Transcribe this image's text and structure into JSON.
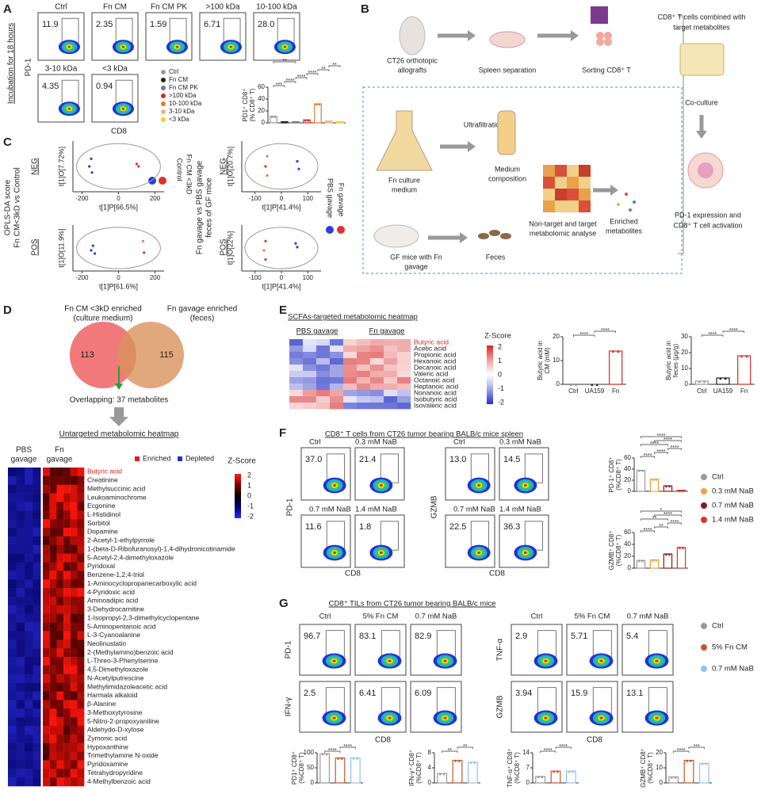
{
  "panel_labels": [
    "A",
    "B",
    "C",
    "D",
    "E",
    "F",
    "G"
  ],
  "A": {
    "side_label": "Incubation for 18 hours",
    "y_axis": "PD-1",
    "x_axis": "CD8",
    "flow": {
      "titles": [
        "Ctrl",
        "Fn CM",
        "Fn CM PK",
        ">100 kDa",
        "10-100 kDa",
        "3-10 kDa",
        "<3 kDa"
      ],
      "values": [
        "11.9",
        "2.35",
        "1.59",
        "6.71",
        "28.0",
        "4.35",
        "0.94"
      ]
    },
    "legend": [
      "Ctrl",
      "Fn CM",
      "Fn CM PK",
      ">100 kDa",
      "10-100 kDa",
      "3-10 kDa",
      "<3 kDa"
    ],
    "colors": [
      "#9a9a9a",
      "#222222",
      "#777777",
      "#d62728",
      "#e07b39",
      "#f3b56b",
      "#f2d027"
    ],
    "bar": {
      "ylabel": [
        "PD1⁺ CD8⁺",
        "(% CD8⁺ T)"
      ],
      "ylim": [
        0,
        60
      ],
      "yticks": [
        0,
        20,
        40,
        60
      ],
      "values": [
        11,
        2,
        2,
        5,
        32,
        3,
        2
      ],
      "sig": [
        "***",
        "****",
        "****",
        "****",
        "**",
        "**",
        "**"
      ]
    }
  },
  "B": {
    "labels": [
      "CT26 orthotopic",
      "allografts",
      "Spleen separation",
      "Sorting CD8⁺ T",
      "CD8⁺ T cells combined with",
      "target metabolites",
      "Co-culture",
      "PD-1 expression and",
      "CD8⁺ T cell activation",
      "Ultrafiltration",
      "Medium",
      "composition",
      "Fn culture",
      "medium",
      "Non-target and target",
      "metabolomic analyse",
      "Enriched",
      "metabolites",
      "GF mice with Fn",
      "gavage",
      "Feces"
    ]
  },
  "C": {
    "left_title": [
      "OPLS-DA score",
      "Fn CM<3kD vs Control"
    ],
    "right_title": [
      "Fn gavage vs PBS gavage",
      "feces of GF mice"
    ],
    "modes": [
      "NEG",
      "POS"
    ],
    "left_legend": [
      "Control",
      "Fn CM <3kD"
    ],
    "right_legend": [
      "PBS gavage",
      "Fn gavage"
    ],
    "plots": [
      {
        "ylabel": "t[1]O[7.72%]",
        "xlabel": "t[1]P[66.5%]",
        "xlim": [
          -250,
          250
        ],
        "xticks": [
          -200,
          0,
          200
        ]
      },
      {
        "ylabel": "t[1]O[11.9%]",
        "xlabel": "t[1]P[61.6%]",
        "xlim": [
          -250,
          250
        ],
        "xticks": [
          -200,
          0,
          200
        ]
      },
      {
        "ylabel": "t[1]O[20.7%]",
        "xlabel": "t[1]P[41.4%]",
        "xlim": [
          -150,
          150
        ],
        "xticks": [
          -100,
          0,
          100
        ]
      },
      {
        "ylabel": "t[1]O[22%]",
        "xlabel": "t[1]P[41.4%]",
        "xlim": [
          -150,
          150
        ],
        "xticks": [
          -100,
          0,
          100
        ]
      }
    ]
  },
  "D": {
    "venn_left": [
      "Fn CM <3kD enriched",
      "(culture medium)"
    ],
    "venn_right": [
      "Fn gavage enriched",
      "(feces)"
    ],
    "counts": [
      113,
      115
    ],
    "overlap": "Overlapping: 37 metabolites",
    "heatmap_title": "Untargeted metabolomic heatmap",
    "groups": [
      [
        "PBS",
        "gavage"
      ],
      [
        "Fn",
        "gavage"
      ]
    ],
    "legend": [
      "Enriched",
      "Depleted"
    ],
    "zscore": "Z-Score",
    "zticks": [
      2,
      1,
      0,
      -1,
      -2
    ],
    "metabolites": [
      "Butyric acid",
      "Creatinine",
      "Methylsuccinic acid",
      "Leukoaminochrome",
      "Ecgonine",
      "L-Histidinol",
      "Sorbitol",
      "Dopamine",
      "2-Acetyl-1-ethylpyrrole",
      "1-(beta-D-Ribofuranosyl)-1,4-dihydronicotinamide",
      "5-Acetyl-2,4-dimethyloxazole",
      "Pyridoxal",
      "Benzene-1,2,4-triol",
      "1-Aminocyclopropanecarboxylic acid",
      "4-Pyridoxic acid",
      "Aminoadipic acid",
      "3-Dehydrocarnitine",
      "1-Isopropyl-2,3-dimethylcyclopentane",
      "5-Aminopentanoic acid",
      "L-3-Cyanoalanine",
      "Neolinustatin",
      "2-(Methylamino)benzoic acid",
      "L-Threo-3-Phenylserine",
      "4,5-Dimethyloxazole",
      "N-Acetylputrescine",
      "Methylimidazoleacetic acid",
      "Harmala alkaloid",
      "β-Alanine",
      "3-Methoxytyrosine",
      "5-Nitro-2-propoxyaniline",
      "Aldehydo-D-xylose",
      "Zymonic acid",
      "Hypoxanthine",
      "Trimethylamine N-oxide",
      "Pyridoxamine",
      "Tetrahydropyridine",
      "4-Methylbenzoic acid"
    ]
  },
  "E": {
    "title": "SCFAs-targeted metabolomic heatmap",
    "groups": [
      "PBS gavage",
      "Fn gavage"
    ],
    "acids": [
      "Butyric acid",
      "Acetic acid",
      "Propionic acid",
      "Hexanoic acid",
      "Decanoic acid",
      "Valeric acid",
      "Octanoic acid",
      "Heptanoic acid",
      "Nonanoic acid",
      "Isobutyric acid",
      "Isovaleric acid"
    ],
    "zscore": "Z-Score",
    "zticks": [
      2,
      1,
      0,
      -1,
      -2
    ],
    "categories": [
      "Ctrl",
      "UA159",
      "Fn"
    ],
    "colors": [
      "#9a9a9a",
      "#222222",
      "#d62728"
    ],
    "bars": [
      {
        "ylabel": [
          "Butyric acid in",
          "CM (mM)"
        ],
        "ylim": [
          0,
          20
        ],
        "yticks": [
          0,
          10,
          20
        ],
        "values": [
          0,
          0,
          14
        ],
        "sig": [
          "****",
          "****"
        ]
      },
      {
        "ylabel": [
          "Butyric acid in",
          "feces (μg/g)"
        ],
        "ylim": [
          0,
          30
        ],
        "yticks": [
          0,
          10,
          20,
          30
        ],
        "values": [
          2,
          4,
          18
        ],
        "sig": [
          "****",
          "****"
        ]
      }
    ]
  },
  "F": {
    "title": "CD8⁺ T cells from CT26 tumor bearing BALB/c mice spleen",
    "conditions": [
      "Ctrl",
      "0.3 mM NaB",
      "0.7 mM NaB",
      "1.4 mM NaB"
    ],
    "flow": [
      {
        "y_axis": "PD-1",
        "x_axis": "CD8",
        "values": [
          "37.0",
          "21.4",
          "11.6",
          "1.8"
        ]
      },
      {
        "y_axis": "GZMB",
        "x_axis": "CD8",
        "values": [
          "13.0",
          "14.5",
          "22.5",
          "36.3"
        ]
      }
    ],
    "colors": [
      "#9a9a9a",
      "#f0a040",
      "#8b1a1a",
      "#e03030"
    ],
    "bars": [
      {
        "ylabel": [
          "PD-1⁺ CD8⁺",
          "(%CD8⁺ T)"
        ],
        "ylim": [
          0,
          60
        ],
        "yticks": [
          0,
          20,
          40,
          60
        ],
        "values": [
          38,
          22,
          10,
          2
        ],
        "sig": [
          "****",
          "****",
          "****",
          "****",
          "****",
          "****"
        ]
      },
      {
        "ylabel": [
          "GZMB⁺ CD8⁺",
          "(%CD8⁺ T)"
        ],
        "ylim": [
          0,
          60
        ],
        "yticks": [
          0,
          20,
          40,
          60
        ],
        "values": [
          13,
          14,
          24,
          35
        ],
        "sig": [
          "****",
          "**",
          "****",
          "**",
          "****",
          "*"
        ]
      }
    ]
  },
  "G": {
    "title": "CD8⁺ TILs from CT26 tumor bearing BALB/c mice",
    "conditions": [
      "Ctrl",
      "5% Fn CM",
      "0.7 mM NaB"
    ],
    "flow": [
      {
        "y_axes": [
          "PD-1",
          "IFN-γ"
        ],
        "x_axis": "CD8",
        "values": [
          "96.7",
          "83.1",
          "82.9",
          "2.5",
          "6.41",
          "6.09"
        ]
      },
      {
        "y_axes": [
          "TNF-α",
          "GZMB"
        ],
        "x_axis": "CD8",
        "values": [
          "2.9",
          "5.71",
          "5.4",
          "3.94",
          "15.9",
          "13.1"
        ]
      }
    ],
    "colors": [
      "#9a9a9a",
      "#c8552a",
      "#8fc3e8"
    ],
    "bars": [
      {
        "ylabel": [
          "PD1⁺ CD8⁺",
          "(%CD8⁺ T)"
        ],
        "ylim": [
          0,
          100
        ],
        "yticks": [
          0,
          50,
          100
        ],
        "values": [
          97,
          83,
          83
        ],
        "sig": [
          "****",
          "****"
        ]
      },
      {
        "ylabel": [
          "IFN-γ⁺ CD8⁺",
          "(%CD8⁺ T)"
        ],
        "ylim": [
          0,
          8
        ],
        "yticks": [
          0,
          4,
          8
        ],
        "values": [
          2.5,
          6,
          5.5
        ],
        "sig": [
          "**",
          "**"
        ]
      },
      {
        "ylabel": [
          "TNF-α⁺ CD8⁺",
          "(%CD8⁺ T)"
        ],
        "ylim": [
          0,
          14
        ],
        "yticks": [
          0,
          7,
          14
        ],
        "values": [
          3,
          5.5,
          5.5
        ],
        "sig": [
          "****",
          "****"
        ]
      },
      {
        "ylabel": [
          "GZMB⁺ CD8⁺",
          "(%CD8⁺ T)"
        ],
        "ylim": [
          0,
          20
        ],
        "yticks": [
          0,
          10,
          20
        ],
        "values": [
          4,
          15,
          13
        ],
        "sig": [
          "****",
          "***"
        ]
      }
    ]
  }
}
